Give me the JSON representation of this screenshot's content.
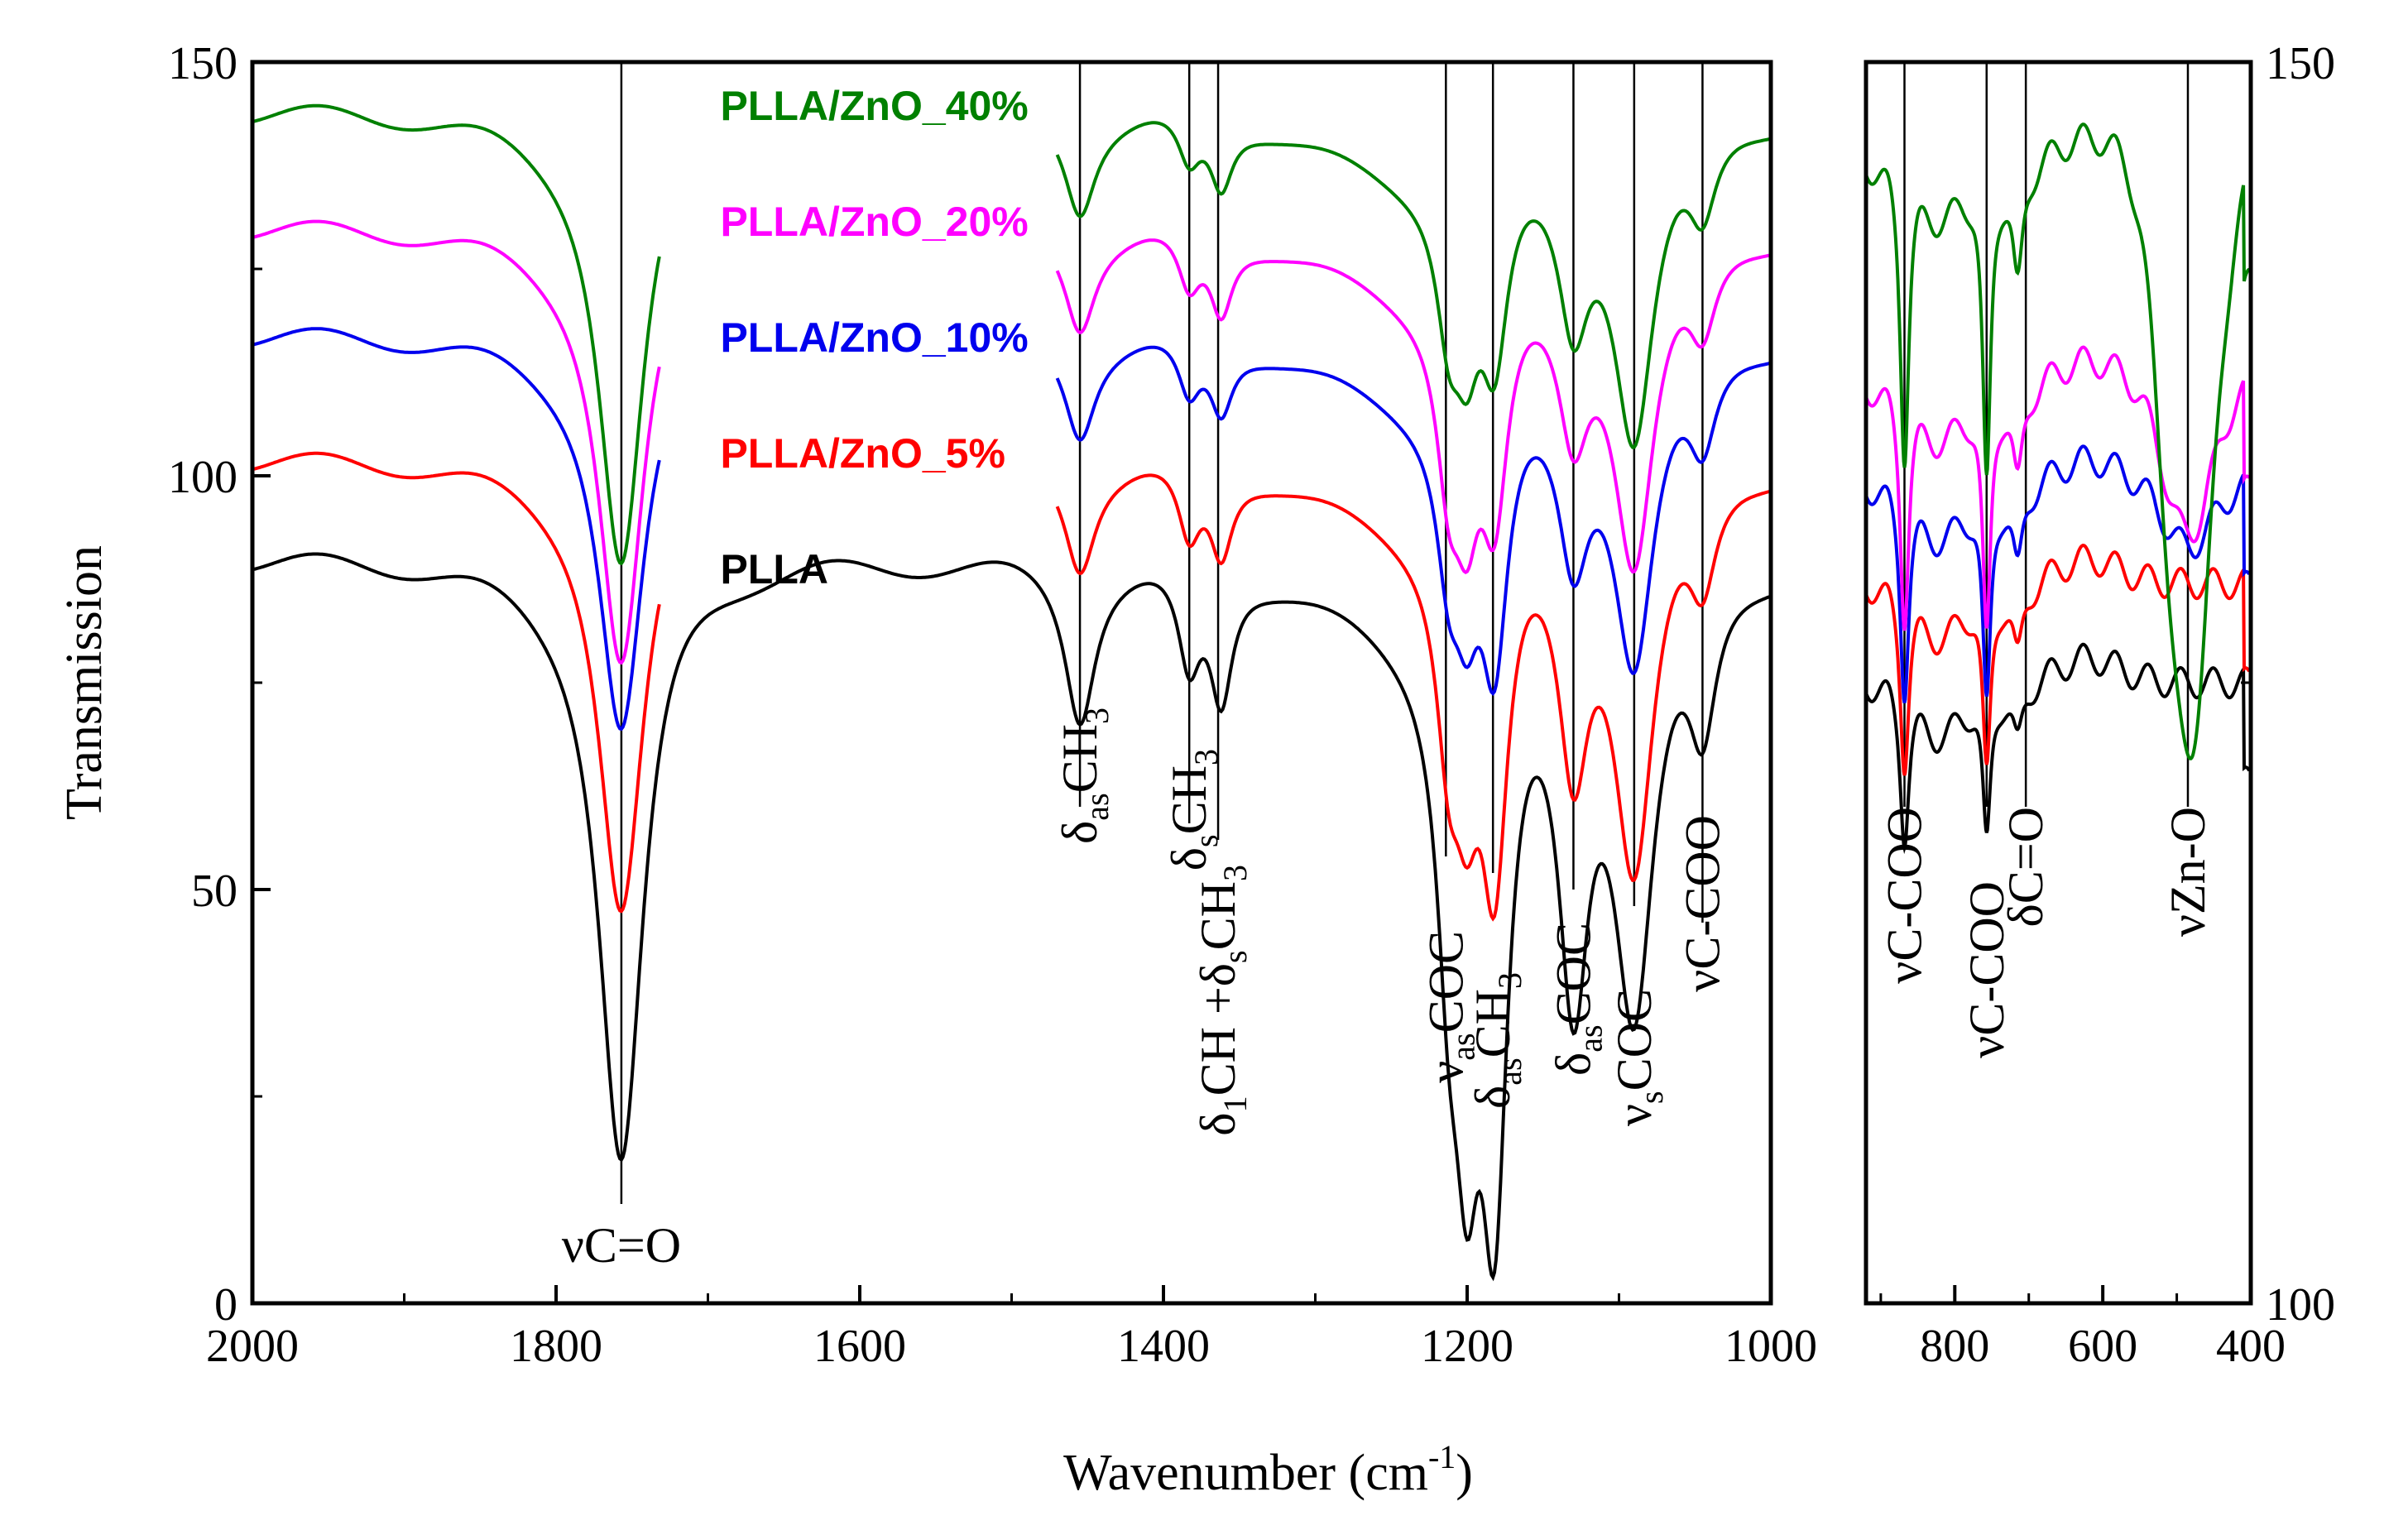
{
  "chart_data": {
    "type": "line",
    "ylabel": "Transmission",
    "xlabel_main": "Wavenumber (cm",
    "xlabel_sup": "-1",
    "xlabel_close": ")",
    "series_colors": {
      "PLLA": "#000000",
      "PLLA/ZnO_5%": "#ff0000",
      "PLLA/ZnO_10%": "#0000ee",
      "PLLA/ZnO_20%": "#ff00ff",
      "PLLA/ZnO_40%": "#008000"
    },
    "legend": [
      {
        "name": "PLLA/ZnO_40%",
        "color": "#008000"
      },
      {
        "name": "PLLA/ZnO_20%",
        "color": "#ff00ff"
      },
      {
        "name": "PLLA/ZnO_10%",
        "color": "#0000ee"
      },
      {
        "name": "PLLA/ZnO_5%",
        "color": "#ff0000"
      },
      {
        "name": "PLLA",
        "color": "#000000"
      }
    ],
    "left_panel": {
      "xlim": [
        2000,
        1000
      ],
      "ylim": [
        0,
        150
      ],
      "xticks": [
        "2000",
        "1800",
        "1600",
        "1400",
        "1200",
        "1000"
      ],
      "xtick_values": [
        2000,
        1800,
        1600,
        1400,
        1200,
        1000
      ],
      "yticks": [
        "0",
        "50",
        "100",
        "150"
      ],
      "ytick_values": [
        0,
        50,
        100,
        150
      ],
      "series": [
        {
          "name": "PLLA",
          "baseline": 90,
          "depths": {
            "CO": 72,
            "CH3as": 18,
            "CH3s": 12,
            "CH": 15,
            "COCas1": 28,
            "COCas2": 45,
            "CH3r": 65,
            "COCas3": 42,
            "COCs": 48,
            "CCOO": 17
          }
        },
        {
          "name": "PLLA/ZnO_5%",
          "baseline": 102,
          "depths": {
            "CO": 54,
            "CH3as": 12,
            "CH3s": 9,
            "CH": 10,
            "COCas1": 21,
            "COCas2": 22,
            "CH3r": 41,
            "COCas3": 28,
            "COCs": 44,
            "CCOO": 12
          }
        },
        {
          "name": "PLLA/ZnO_10%",
          "baseline": 117,
          "depths": {
            "CO": 47,
            "CH3as": 11,
            "CH3s": 7,
            "CH": 8,
            "COCas1": 16,
            "COCas2": 18,
            "CH3r": 31,
            "COCas3": 19,
            "COCs": 35,
            "CCOO": 11
          }
        },
        {
          "name": "PLLA/ZnO_20%",
          "baseline": 130,
          "depths": {
            "CO": 52,
            "CH3as": 11,
            "CH3s": 7,
            "CH": 9,
            "COCas1": 18,
            "COCas2": 20,
            "CH3r": 26,
            "COCas3": 17,
            "COCs": 36,
            "CCOO": 10
          }
        },
        {
          "name": "PLLA/ZnO_40%",
          "baseline": 144,
          "depths": {
            "CO": 54,
            "CH3as": 11,
            "CH3s": 6,
            "CH": 8,
            "COCas1": 15,
            "COCas2": 16,
            "CH3r": 22,
            "COCas3": 18,
            "COCs": 35,
            "CCOO": 10
          }
        }
      ]
    },
    "right_panel": {
      "xlim": [
        920,
        400
      ],
      "ylim": [
        100,
        150
      ],
      "xticks": [
        "800",
        "600",
        "400"
      ],
      "xtick_values": [
        800,
        600,
        400
      ],
      "yticks": [
        "100",
        "150"
      ],
      "ytick_values": [
        100,
        150
      ],
      "series": [
        {
          "name": "PLLA",
          "baseline": 125
        },
        {
          "name": "PLLA/ZnO_5%",
          "baseline": 129
        },
        {
          "name": "PLLA/ZnO_10%",
          "baseline": 133
        },
        {
          "name": "PLLA/ZnO_20%",
          "baseline": 137
        },
        {
          "name": "PLLA/ZnO_40%",
          "baseline": 146
        }
      ]
    },
    "annotations_left": [
      {
        "x": 1757,
        "label": "νC=O",
        "sub": ""
      },
      {
        "x": 1455,
        "label": "δ",
        "sub": "as",
        "rest": "CH",
        "sub2": "3"
      },
      {
        "x": 1383,
        "label": "δ",
        "sub": "s",
        "rest": "CH",
        "sub2": "3"
      },
      {
        "x": 1364,
        "label": "δ",
        "sub": "1",
        "rest": "CH +δ",
        "sub2": "s",
        "rest2": "CH",
        "sub3": "3"
      },
      {
        "x": 1214,
        "label": "ν",
        "sub": "as",
        "rest": "COC"
      },
      {
        "x": 1183,
        "label": "δ",
        "sub": "as",
        "rest": "CH",
        "sub2": "3"
      },
      {
        "x": 1130,
        "label": "δ",
        "sub": "as",
        "rest": "COC"
      },
      {
        "x": 1090,
        "label": "ν",
        "sub": "s",
        "rest": "COC"
      },
      {
        "x": 1045,
        "label": "νC-COO",
        "sub": ""
      }
    ],
    "annotations_right": [
      {
        "x": 868,
        "label": "νC-COO"
      },
      {
        "x": 757,
        "label": "νC-COO"
      },
      {
        "x": 704,
        "label": "δC=O"
      },
      {
        "x": 485,
        "label": "νZn-O"
      }
    ]
  }
}
